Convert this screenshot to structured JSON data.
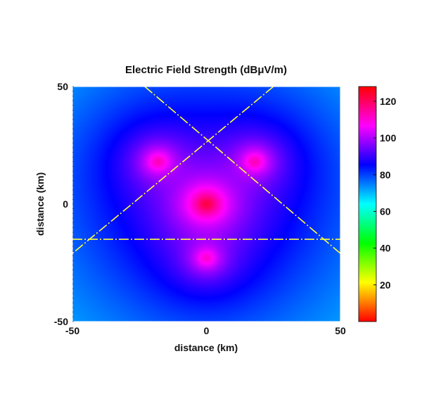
{
  "chart_data": {
    "type": "heatmap",
    "title": "Electric Field Strength (dBμV/m)",
    "xlabel": "distance (km)",
    "ylabel": "distance (km)",
    "xlim": [
      -50,
      50
    ],
    "ylim": [
      -50,
      50
    ],
    "x_ticks": [
      -50,
      0,
      50
    ],
    "y_ticks": [
      -50,
      0,
      50
    ],
    "colorbar": {
      "ticks": [
        20,
        40,
        60,
        80,
        100,
        120
      ],
      "range": [
        0,
        128
      ],
      "colormap": "hsv-like: red (low) -> yellow -> green -> cyan -> blue -> magenta -> red (high)"
    },
    "field_model": {
      "description": "superposition of four transmitter peaks",
      "background_level_dB": 42,
      "sources": [
        {
          "x": 0,
          "y": 0,
          "peak_dB": 122
        },
        {
          "x": -18,
          "y": 18,
          "peak_dB": 112
        },
        {
          "x": 18,
          "y": 18,
          "peak_dB": 112
        },
        {
          "x": 0,
          "y": -23,
          "peak_dB": 110
        }
      ]
    },
    "contour_levels_dB": [
      54,
      68
    ],
    "contour_color": "#b35ce0",
    "overlay_lines": [
      {
        "from": [
          -23,
          50
        ],
        "to": [
          50,
          -21
        ]
      },
      {
        "from": [
          25,
          50
        ],
        "to": [
          -50,
          -21
        ]
      },
      {
        "from": [
          -50,
          -15
        ],
        "to": [
          50,
          -15
        ]
      }
    ],
    "overlay_line_color": "#ffff3c",
    "grid": false
  }
}
